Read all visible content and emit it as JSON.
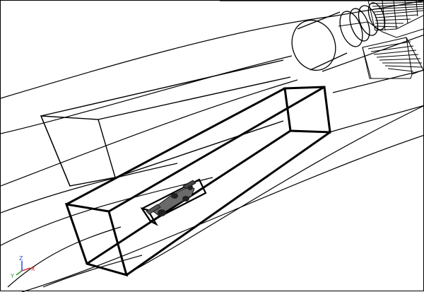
{
  "colors": {
    "background": "#ffffff",
    "wire": "#000000",
    "axis_x": "#e03030",
    "axis_y": "#2a9a2a",
    "axis_z": "#2a4ad8"
  },
  "axes": {
    "x_label": "X",
    "y_label": "Y",
    "z_label": "Z"
  }
}
